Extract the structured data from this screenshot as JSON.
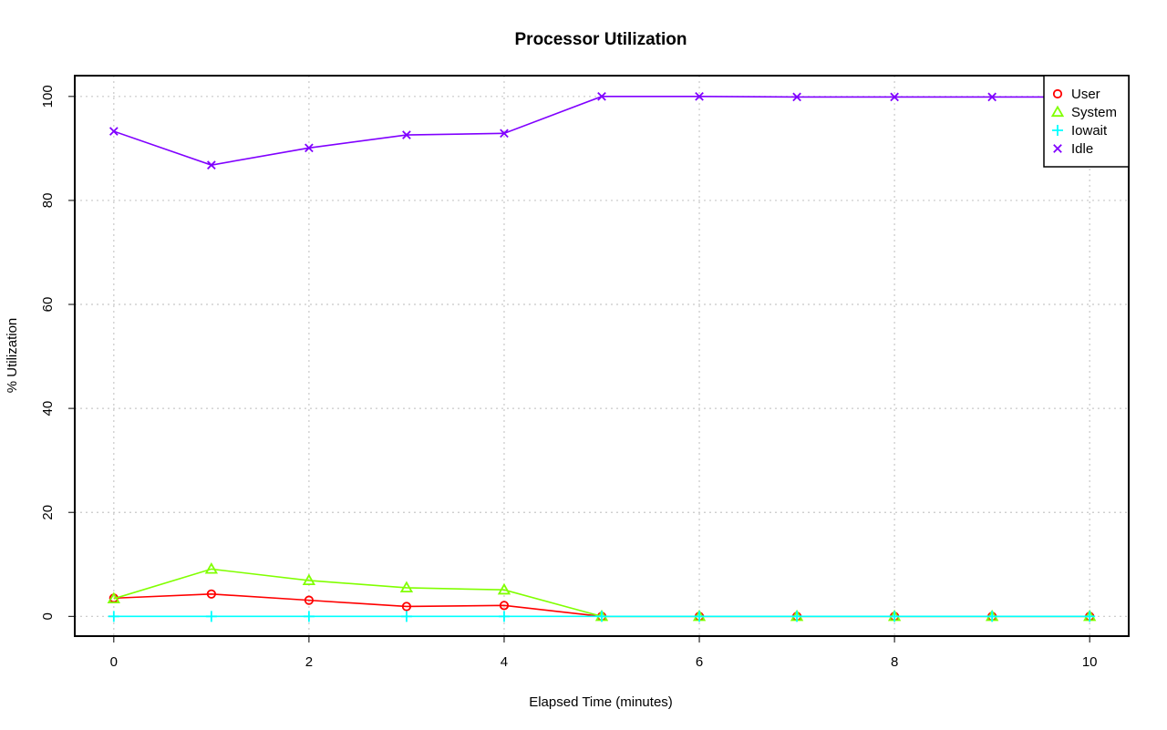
{
  "chart_data": {
    "type": "line",
    "title": "Processor Utilization",
    "xlabel": "Elapsed Time (minutes)",
    "ylabel": "% Utilization",
    "xlim": [
      -0.4,
      10.4
    ],
    "ylim": [
      -3.8,
      104
    ],
    "xticks": [
      0,
      2,
      4,
      6,
      8,
      10
    ],
    "yticks": [
      0,
      20,
      40,
      60,
      80,
      100
    ],
    "xtick_labels": [
      "0",
      "2",
      "4",
      "6",
      "8",
      "10"
    ],
    "ytick_labels": [
      "0",
      "20",
      "40",
      "60",
      "80",
      "100"
    ],
    "grid": true,
    "legend_position": "top-right",
    "x": [
      0,
      1,
      2,
      3,
      4,
      5,
      6,
      7,
      8,
      9,
      10
    ],
    "series": [
      {
        "name": "User",
        "color": "#ff0000",
        "marker": "circle",
        "values": [
          3.5,
          4.3,
          3.1,
          1.9,
          2.1,
          0,
          0,
          0,
          0,
          0,
          0
        ]
      },
      {
        "name": "System",
        "color": "#80ff00",
        "marker": "triangle",
        "values": [
          3.4,
          9.1,
          6.9,
          5.5,
          5.1,
          0,
          0,
          0,
          0,
          0,
          0
        ]
      },
      {
        "name": "Iowait",
        "color": "#00ffff",
        "marker": "plus",
        "values": [
          0,
          0,
          0,
          0,
          0,
          0,
          0,
          0,
          0,
          0,
          0
        ]
      },
      {
        "name": "Idle",
        "color": "#8000ff",
        "marker": "cross",
        "values": [
          93.3,
          86.8,
          90.1,
          92.6,
          92.9,
          100,
          100,
          99.9,
          99.9,
          99.9,
          99.9
        ]
      }
    ]
  }
}
